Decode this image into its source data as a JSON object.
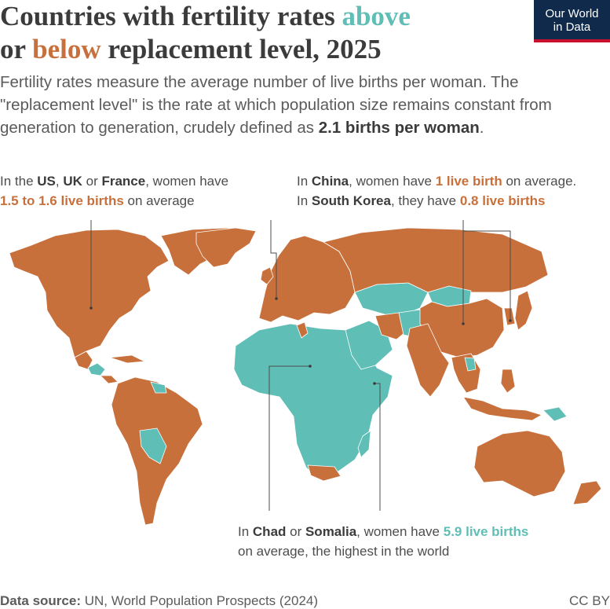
{
  "header": {
    "title_part1": "Countries with fertility rates ",
    "title_above": "above",
    "title_part2": "or ",
    "title_below": "below",
    "title_part3": " replacement level, 2025"
  },
  "logo": {
    "line1": "Our World",
    "line2": "in Data"
  },
  "subtitle": {
    "text_before": "Fertility rates measure the average number of live births per woman. The \"replacement level\" is the rate at which population size remains constant from generation to generation, crudely defined as ",
    "emphasis": "2.1 births per woman",
    "text_after": "."
  },
  "annotations": {
    "western": {
      "p1": "In the ",
      "us": "US",
      "p2": ", ",
      "uk": "UK",
      "p3": " or ",
      "france": "France",
      "p4": ", women have ",
      "value": "1.5 to 1.6 live births",
      "p5": " on average"
    },
    "east_asia": {
      "p1": "In ",
      "china": "China",
      "p2": ", women have ",
      "china_value": "1 live birth",
      "p3": " on average.",
      "p4": "In ",
      "korea": "South Korea",
      "p5": ", they have ",
      "korea_value": "0.8 live births"
    },
    "africa": {
      "p1": "In ",
      "chad": "Chad",
      "p2": " or ",
      "somalia": "Somalia",
      "p3": ", women have ",
      "value": "5.9 live births",
      "p4": "on average, the highest in the world"
    }
  },
  "footer": {
    "source_label": "Data source:",
    "source": " UN, World Population Prospects (2024)",
    "license": "CC BY"
  },
  "colors": {
    "above": "#5fbeb6",
    "below": "#c8703c",
    "title": "#3b3b3b",
    "text": "#5b5b5b",
    "logo_bg": "#0f2a4a",
    "logo_accent": "#c8102e"
  }
}
